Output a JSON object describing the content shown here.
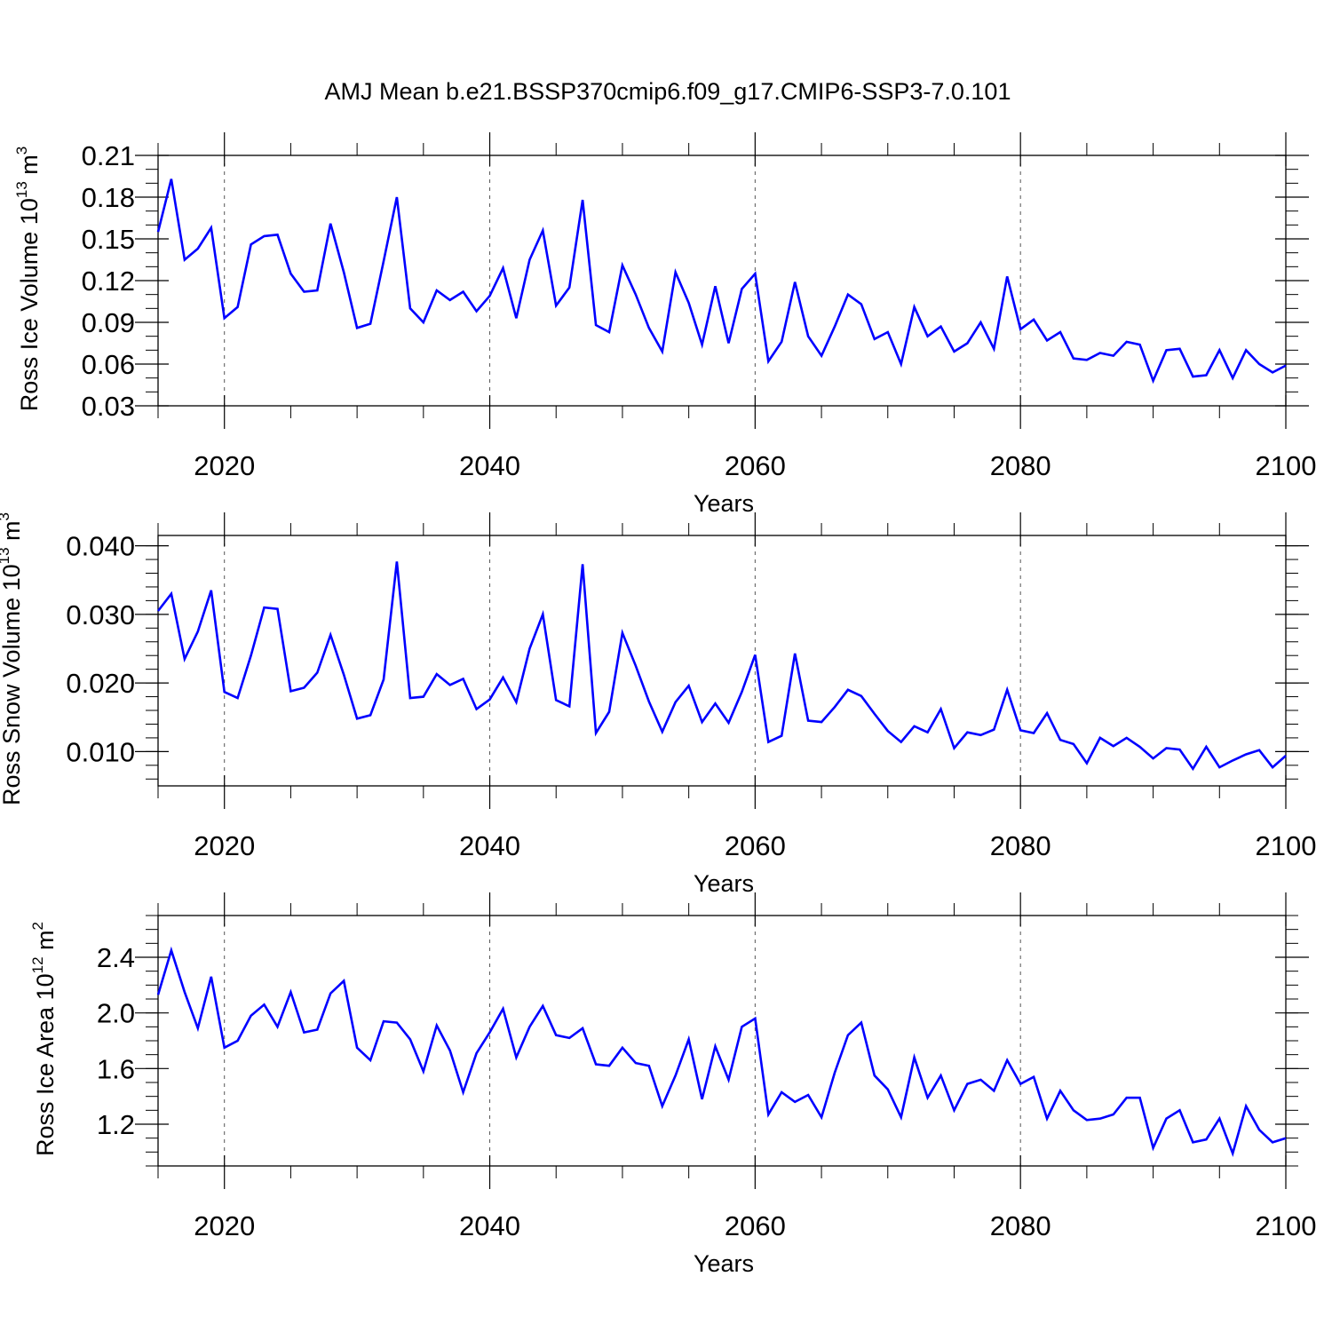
{
  "title": "AMJ Mean b.e21.BSSP370cmip6.f09_g17.CMIP6-SSP3-7.0.101",
  "chart_data": [
    {
      "type": "line",
      "xlabel": "Years",
      "ylabel": "Ross Ice Volume 10",
      "ylabel_exp": "13",
      "ylabel_unit": " m",
      "ylabel_unit_exp": "3",
      "xlim": [
        2015,
        2100
      ],
      "ylim": [
        0.03,
        0.21
      ],
      "yticks": [
        "0.03",
        "0.06",
        "0.09",
        "0.12",
        "0.15",
        "0.18",
        "0.21"
      ],
      "ytick_values": [
        0.03,
        0.06,
        0.09,
        0.12,
        0.15,
        0.18,
        0.21
      ],
      "yminor_step": 0.01,
      "xticks": [
        "2020",
        "2040",
        "2060",
        "2080",
        "2100"
      ],
      "xtick_values": [
        2020,
        2040,
        2060,
        2080,
        2100
      ],
      "grid_x_dashed": [
        2020,
        2040,
        2060,
        2080
      ],
      "series": [
        {
          "color": "#0000ff",
          "x_start": 2015,
          "values": [
            0.155,
            0.193,
            0.135,
            0.143,
            0.158,
            0.093,
            0.101,
            0.146,
            0.152,
            0.153,
            0.125,
            0.112,
            0.113,
            0.161,
            0.126,
            0.086,
            0.089,
            0.134,
            0.18,
            0.1,
            0.09,
            0.113,
            0.106,
            0.112,
            0.098,
            0.109,
            0.129,
            0.093,
            0.135,
            0.156,
            0.102,
            0.115,
            0.178,
            0.088,
            0.083,
            0.131,
            0.11,
            0.086,
            0.069,
            0.126,
            0.104,
            0.074,
            0.116,
            0.075,
            0.114,
            0.125,
            0.062,
            0.076,
            0.119,
            0.08,
            0.066,
            0.087,
            0.11,
            0.103,
            0.078,
            0.083,
            0.06,
            0.101,
            0.08,
            0.087,
            0.069,
            0.075,
            0.09,
            0.071,
            0.123,
            0.085,
            0.092,
            0.077,
            0.083,
            0.064,
            0.063,
            0.068,
            0.066,
            0.076,
            0.074,
            0.048,
            0.07,
            0.071,
            0.051,
            0.052,
            0.07,
            0.05,
            0.07,
            0.06,
            0.054,
            0.059
          ]
        }
      ]
    },
    {
      "type": "line",
      "xlabel": "Years",
      "ylabel": "Ross Snow Volume 10",
      "ylabel_exp": "13",
      "ylabel_unit": " m",
      "ylabel_unit_exp": "3",
      "xlim": [
        2015,
        2100
      ],
      "ylim": [
        0.005,
        0.0415
      ],
      "yticks": [
        "0.010",
        "0.020",
        "0.030",
        "0.040"
      ],
      "ytick_values": [
        0.01,
        0.02,
        0.03,
        0.04
      ],
      "yminor_step": 0.002,
      "xticks": [
        "2020",
        "2040",
        "2060",
        "2080",
        "2100"
      ],
      "xtick_values": [
        2020,
        2040,
        2060,
        2080,
        2100
      ],
      "grid_x_dashed": [
        2020,
        2040,
        2060,
        2080
      ],
      "series": [
        {
          "color": "#0000ff",
          "x_start": 2015,
          "values": [
            0.0305,
            0.033,
            0.0235,
            0.0275,
            0.0335,
            0.0187,
            0.0178,
            0.024,
            0.031,
            0.0308,
            0.0188,
            0.0193,
            0.0215,
            0.027,
            0.0212,
            0.0148,
            0.0153,
            0.0205,
            0.0377,
            0.0178,
            0.018,
            0.0213,
            0.0197,
            0.0206,
            0.0162,
            0.0176,
            0.0208,
            0.0172,
            0.025,
            0.03,
            0.0175,
            0.0166,
            0.0373,
            0.0127,
            0.0158,
            0.0273,
            0.0225,
            0.0173,
            0.0129,
            0.0172,
            0.0196,
            0.0143,
            0.017,
            0.0142,
            0.0187,
            0.0241,
            0.0114,
            0.0123,
            0.0243,
            0.0145,
            0.0143,
            0.0165,
            0.019,
            0.0181,
            0.0155,
            0.013,
            0.0114,
            0.0137,
            0.0128,
            0.0162,
            0.0105,
            0.0128,
            0.0124,
            0.0132,
            0.019,
            0.0131,
            0.0127,
            0.0156,
            0.0117,
            0.0111,
            0.0083,
            0.012,
            0.0108,
            0.012,
            0.0107,
            0.009,
            0.0105,
            0.0103,
            0.0075,
            0.0107,
            0.0077,
            0.0087,
            0.0096,
            0.0102,
            0.0077,
            0.0094
          ]
        }
      ]
    },
    {
      "type": "line",
      "xlabel": "Years",
      "ylabel": "Ross Ice Area 10",
      "ylabel_exp": "12",
      "ylabel_unit": " m",
      "ylabel_unit_exp": "2",
      "xlim": [
        2015,
        2100
      ],
      "ylim": [
        0.9,
        2.7
      ],
      "yticks": [
        "1.2",
        "1.6",
        "2.0",
        "2.4"
      ],
      "ytick_values": [
        1.2,
        1.6,
        2.0,
        2.4
      ],
      "yminor_step": 0.1,
      "xticks": [
        "2020",
        "2040",
        "2060",
        "2080",
        "2100"
      ],
      "xtick_values": [
        2020,
        2040,
        2060,
        2080,
        2100
      ],
      "grid_x_dashed": [
        2020,
        2040,
        2060,
        2080
      ],
      "series": [
        {
          "color": "#0000ff",
          "x_start": 2015,
          "values": [
            2.13,
            2.45,
            2.15,
            1.89,
            2.26,
            1.75,
            1.8,
            1.98,
            2.06,
            1.9,
            2.15,
            1.86,
            1.88,
            2.14,
            2.23,
            1.75,
            1.66,
            1.94,
            1.93,
            1.81,
            1.58,
            1.91,
            1.73,
            1.43,
            1.71,
            1.86,
            2.03,
            1.68,
            1.9,
            2.05,
            1.84,
            1.82,
            1.89,
            1.63,
            1.62,
            1.75,
            1.64,
            1.62,
            1.33,
            1.55,
            1.81,
            1.38,
            1.76,
            1.52,
            1.9,
            1.96,
            1.27,
            1.43,
            1.36,
            1.41,
            1.25,
            1.57,
            1.84,
            1.93,
            1.55,
            1.45,
            1.25,
            1.68,
            1.39,
            1.55,
            1.3,
            1.49,
            1.52,
            1.44,
            1.66,
            1.49,
            1.54,
            1.24,
            1.44,
            1.3,
            1.23,
            1.24,
            1.27,
            1.39,
            1.39,
            1.03,
            1.24,
            1.3,
            1.07,
            1.09,
            1.24,
            0.99,
            1.33,
            1.16,
            1.07,
            1.1
          ]
        }
      ]
    }
  ]
}
